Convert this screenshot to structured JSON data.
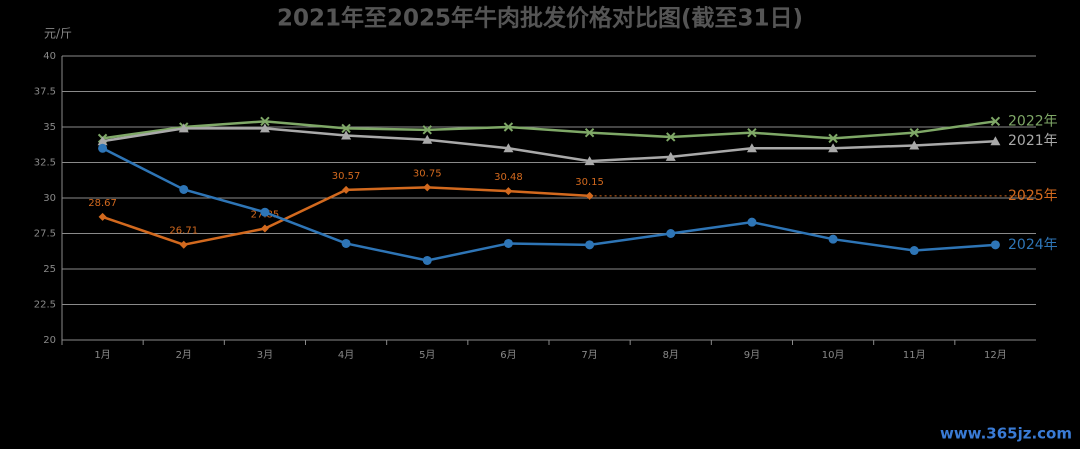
{
  "chart_data": {
    "type": "line",
    "title": "2021年至2025年牛肉批发价格对比图(截至31日)",
    "y_axis_label": "元/斤",
    "watermark": "www.365jz.com",
    "categories": [
      "1月",
      "2月",
      "3月",
      "4月",
      "5月",
      "6月",
      "7月",
      "8月",
      "9月",
      "10月",
      "11月",
      "12月"
    ],
    "ylim": [
      20,
      40
    ],
    "yticks": [
      20,
      22.5,
      25,
      27.5,
      30,
      32.5,
      35,
      37.5,
      40
    ],
    "grid": true,
    "series": [
      {
        "name": "2022年",
        "color": "#7fa867",
        "marker": "x",
        "values": [
          34.2,
          35.0,
          35.4,
          34.9,
          34.8,
          35.0,
          34.6,
          34.3,
          34.6,
          34.2,
          34.6,
          35.4
        ]
      },
      {
        "name": "2021年",
        "color": "#a9a9a9",
        "marker": "triangle",
        "values": [
          34.0,
          34.9,
          34.9,
          34.4,
          34.1,
          33.5,
          32.6,
          32.9,
          33.5,
          33.5,
          33.7,
          34.0
        ]
      },
      {
        "name": "2025年",
        "color": "#d2691e",
        "marker": "diamond",
        "data_labels": true,
        "extend_dashed": true,
        "values": [
          28.67,
          26.71,
          27.85,
          30.57,
          30.75,
          30.48,
          30.15,
          null,
          null,
          null,
          null,
          null
        ]
      },
      {
        "name": "2024年",
        "color": "#2e75b6",
        "marker": "circle",
        "values": [
          33.5,
          30.6,
          29.0,
          26.8,
          25.6,
          26.8,
          26.7,
          27.5,
          28.3,
          27.1,
          26.3,
          26.7
        ]
      }
    ]
  }
}
